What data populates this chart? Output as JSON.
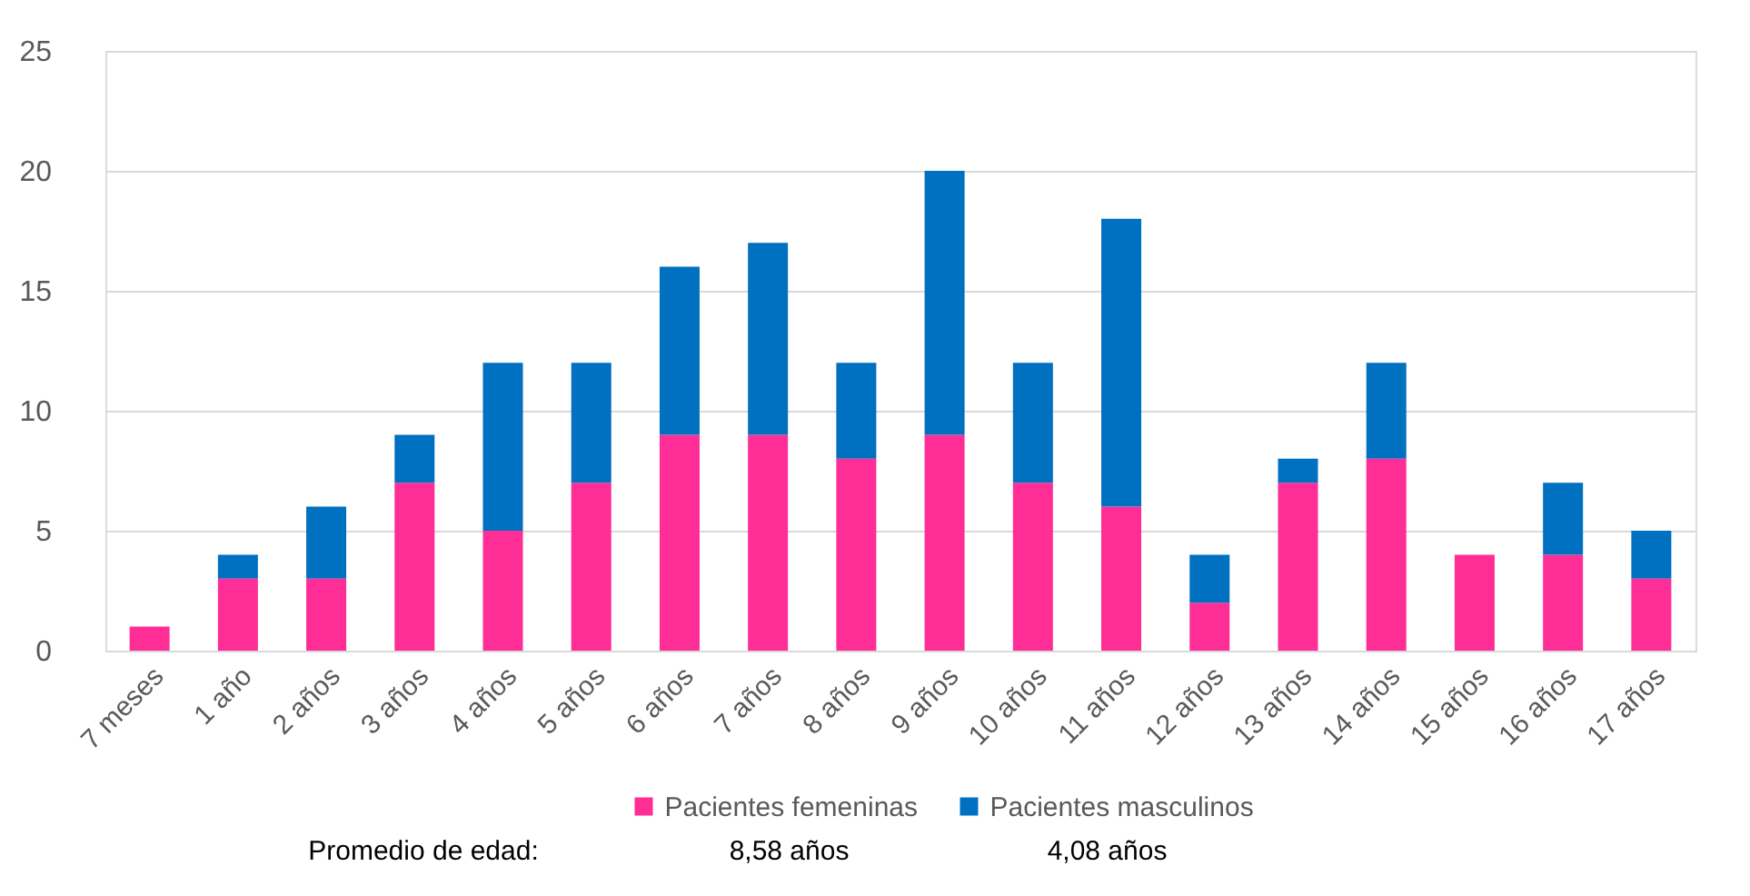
{
  "chart_data": {
    "type": "bar",
    "stacked": true,
    "categories": [
      "7 meses",
      "1 año",
      "2 años",
      "3 años",
      "4 años",
      "5 años",
      "6 años",
      "7 años",
      "8 años",
      "9 años",
      "10 años",
      "11 años",
      "12 años",
      "13 años",
      "14 años",
      "15 años",
      "16 años",
      "17 años"
    ],
    "series": [
      {
        "name": "Pacientes femeninas",
        "color": "#ff2d96",
        "values": [
          1,
          3,
          3,
          7,
          5,
          7,
          9,
          9,
          8,
          9,
          7,
          6,
          2,
          7,
          8,
          4,
          4,
          3
        ]
      },
      {
        "name": "Pacientes masculinos",
        "color": "#0070c0",
        "values": [
          0,
          1,
          3,
          2,
          7,
          5,
          7,
          8,
          4,
          11,
          5,
          12,
          2,
          1,
          4,
          0,
          3,
          2
        ]
      }
    ],
    "ylim": [
      0,
      25
    ],
    "yticks": [
      0,
      5,
      10,
      15,
      20,
      25
    ],
    "grid": "y",
    "legend": "bottom",
    "annotations": [
      "Promedio de edad:",
      "8,58 años",
      "4,08 años"
    ]
  }
}
